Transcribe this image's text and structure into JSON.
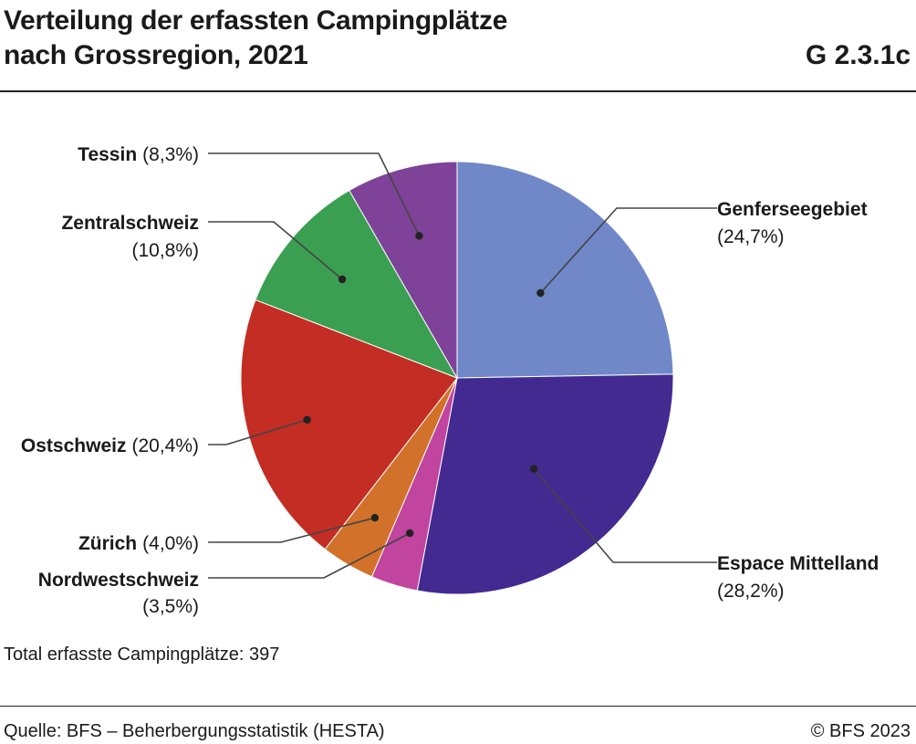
{
  "header": {
    "title": "Verteilung der erfassten Campingplätze\nnach Grossregion, 2021",
    "code": "G 2.3.1c"
  },
  "chart_data": {
    "type": "pie",
    "title": "Verteilung der erfassten Campingplätze nach Grossregion, 2021",
    "unit": "%",
    "start": "top, clockwise",
    "slices": [
      {
        "name": "Genferseegebiet",
        "value": 24.7,
        "value_label": "(24,7%)",
        "color": "#7088c8"
      },
      {
        "name": "Espace Mittelland",
        "value": 28.2,
        "value_label": "(28,2%)",
        "color": "#432a91"
      },
      {
        "name": "Nordwestschweiz",
        "value": 3.5,
        "value_label": "(3,5%)",
        "color": "#c1449f"
      },
      {
        "name": "Zürich",
        "value": 4.0,
        "value_label": "(4,0%)",
        "color": "#d2722a"
      },
      {
        "name": "Ostschweiz",
        "value": 20.4,
        "value_label": "(20,4%)",
        "color": "#c32d23"
      },
      {
        "name": "Zentralschweiz",
        "value": 10.8,
        "value_label": "(10,8%)",
        "color": "#3a9f51"
      },
      {
        "name": "Tessin",
        "value": 8.3,
        "value_label": "(8,3%)",
        "color": "#7e4398"
      }
    ]
  },
  "footer": {
    "note": "Total erfasste Campingplätze: 397",
    "source": "Quelle: BFS – Beherbergungsstatistik (HESTA)",
    "copyright": "© BFS 2023"
  }
}
